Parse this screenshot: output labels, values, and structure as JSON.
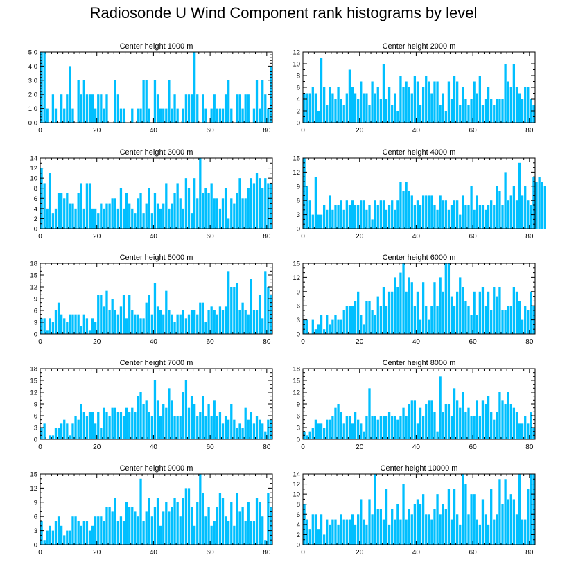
{
  "title": "Radiosonde U Wind Component rank histograms by level",
  "colors": {
    "bar": "#00bfff",
    "axis": "#000000",
    "background": "#ffffff"
  },
  "chart_data": [
    {
      "type": "bar",
      "title": "Center height 1000 m",
      "xlim": [
        0,
        82
      ],
      "ylim": [
        0,
        5
      ],
      "xticks": [
        0,
        20,
        40,
        60,
        80
      ],
      "yticks": [
        0,
        1,
        2,
        3,
        4,
        5
      ],
      "ytick_labels": [
        "0.0",
        "1.0",
        "2.0",
        "3.0",
        "4.0",
        "5.0"
      ],
      "values": [
        5,
        5,
        1,
        0,
        2,
        1,
        0,
        2,
        1,
        2,
        4,
        1,
        0,
        3,
        2,
        3,
        2,
        2,
        2,
        1,
        2,
        2,
        1,
        2,
        0,
        0,
        3,
        2,
        1,
        1,
        0,
        0,
        1,
        0,
        1,
        1,
        3,
        3,
        1,
        0,
        3,
        2,
        1,
        1,
        1,
        3,
        1,
        2,
        1,
        0,
        1,
        2,
        2,
        2,
        5,
        2,
        0,
        2,
        1,
        0,
        1,
        2,
        1,
        1,
        1,
        2,
        3,
        1,
        0,
        2,
        2,
        1,
        2,
        2,
        0,
        1,
        3,
        1,
        3,
        2,
        1,
        4
      ]
    },
    {
      "type": "bar",
      "title": "Center height 2000 m",
      "xlim": [
        0,
        82
      ],
      "ylim": [
        0,
        12
      ],
      "xticks": [
        0,
        20,
        40,
        60,
        80
      ],
      "yticks": [
        0,
        2,
        4,
        6,
        8,
        10,
        12
      ],
      "ytick_labels": [
        "0",
        "2",
        "4",
        "6",
        "8",
        "10",
        "12"
      ],
      "values": [
        5,
        5,
        5,
        6,
        5,
        2,
        11,
        6,
        3,
        6,
        5,
        4,
        6,
        4,
        3,
        5,
        9,
        6,
        5,
        4,
        7,
        5,
        5,
        3,
        7,
        5,
        6,
        4,
        10,
        4,
        6,
        3,
        5,
        2,
        8,
        6,
        7,
        6,
        5,
        8,
        7,
        3,
        6,
        8,
        7,
        5,
        7,
        7,
        3,
        5,
        2,
        7,
        4,
        8,
        7,
        3,
        6,
        4,
        3,
        4,
        7,
        5,
        8,
        3,
        4,
        6,
        4,
        3,
        4,
        4,
        4,
        10,
        7,
        6,
        10,
        6,
        5,
        4,
        6,
        6,
        4,
        3
      ]
    },
    {
      "type": "bar",
      "title": "Center height 3000 m",
      "xlim": [
        0,
        82
      ],
      "ylim": [
        0,
        14
      ],
      "xticks": [
        0,
        20,
        40,
        60,
        80
      ],
      "yticks": [
        0,
        2,
        4,
        6,
        8,
        10,
        12,
        14
      ],
      "ytick_labels": [
        "0",
        "2",
        "4",
        "6",
        "8",
        "10",
        "12",
        "14"
      ],
      "values": [
        12,
        9,
        4,
        11,
        3,
        4,
        7,
        7,
        6,
        7,
        5,
        5,
        4,
        7,
        9,
        4,
        9,
        9,
        4,
        4,
        3,
        5,
        4,
        5,
        5,
        6,
        6,
        4,
        8,
        4,
        7,
        5,
        4,
        3,
        6,
        7,
        3,
        5,
        8,
        3,
        7,
        5,
        4,
        5,
        9,
        4,
        5,
        7,
        9,
        6,
        4,
        10,
        8,
        3,
        10,
        6,
        14,
        7,
        8,
        7,
        9,
        6,
        6,
        4,
        6,
        8,
        2,
        6,
        5,
        7,
        10,
        6,
        6,
        8,
        10,
        9,
        11,
        10,
        8,
        10,
        9,
        9
      ]
    },
    {
      "type": "bar",
      "title": "Center height 4000 m",
      "xlim": [
        0,
        82
      ],
      "ylim": [
        0,
        15
      ],
      "xticks": [
        0,
        20,
        40,
        60,
        80
      ],
      "yticks": [
        0,
        3,
        6,
        9,
        12,
        15
      ],
      "ytick_labels": [
        "0",
        "3",
        "6",
        "9",
        "12",
        "15"
      ],
      "values": [
        15,
        9,
        6,
        3,
        11,
        3,
        3,
        5,
        4,
        7,
        4,
        5,
        5,
        6,
        4,
        6,
        5,
        6,
        5,
        5,
        6,
        6,
        4,
        5,
        2,
        6,
        5,
        6,
        6,
        4,
        5,
        6,
        4,
        6,
        10,
        8,
        10,
        8,
        7,
        5,
        6,
        5,
        7,
        7,
        7,
        7,
        5,
        4,
        7,
        6,
        6,
        4,
        5,
        6,
        6,
        3,
        7,
        5,
        5,
        9,
        4,
        7,
        5,
        5,
        4,
        5,
        6,
        5,
        9,
        8,
        5,
        12,
        6,
        7,
        9,
        6,
        14,
        7,
        9,
        6,
        5,
        11,
        10,
        11,
        10,
        9
      ]
    },
    {
      "type": "bar",
      "title": "Center height 5000 m",
      "xlim": [
        0,
        82
      ],
      "ylim": [
        0,
        18
      ],
      "xticks": [
        0,
        20,
        40,
        60,
        80
      ],
      "yticks": [
        0,
        3,
        6,
        9,
        12,
        15,
        18
      ],
      "ytick_labels": [
        "0",
        "3",
        "6",
        "9",
        "12",
        "15",
        "18"
      ],
      "values": [
        4,
        4,
        1,
        4,
        3,
        6,
        8,
        5,
        4,
        3,
        5,
        5,
        5,
        5,
        2,
        5,
        4,
        1,
        4,
        3,
        10,
        10,
        7,
        11,
        6,
        9,
        6,
        5,
        7,
        10,
        4,
        10,
        6,
        5,
        5,
        4,
        4,
        8,
        10,
        5,
        13,
        7,
        6,
        5,
        11,
        6,
        5,
        3,
        5,
        5,
        6,
        4,
        5,
        6,
        6,
        5,
        8,
        8,
        3,
        6,
        7,
        6,
        5,
        7,
        6,
        7,
        16,
        12,
        12,
        13,
        6,
        8,
        6,
        5,
        14,
        6,
        6,
        10,
        4,
        16,
        12,
        10
      ]
    },
    {
      "type": "bar",
      "title": "Center height 6000 m",
      "xlim": [
        0,
        82
      ],
      "ylim": [
        0,
        15
      ],
      "xticks": [
        0,
        20,
        40,
        60,
        80
      ],
      "yticks": [
        0,
        3,
        6,
        9,
        12,
        15
      ],
      "ytick_labels": [
        "0",
        "3",
        "6",
        "9",
        "12",
        "15"
      ],
      "values": [
        3,
        3,
        0,
        3,
        1,
        2,
        4,
        1,
        4,
        2,
        3,
        4,
        3,
        3,
        5,
        6,
        6,
        6,
        7,
        9,
        4,
        2,
        7,
        7,
        5,
        4,
        8,
        6,
        10,
        6,
        9,
        9,
        12,
        10,
        13,
        15,
        9,
        12,
        11,
        6,
        9,
        3,
        11,
        6,
        3,
        6,
        11,
        6,
        12,
        9,
        15,
        15,
        8,
        6,
        9,
        12,
        10,
        7,
        6,
        4,
        9,
        4,
        9,
        10,
        6,
        9,
        5,
        10,
        8,
        10,
        5,
        5,
        6,
        6,
        10,
        9,
        7,
        3,
        6,
        5,
        9,
        6
      ]
    },
    {
      "type": "bar",
      "title": "Center height 7000 m",
      "xlim": [
        0,
        82
      ],
      "ylim": [
        0,
        18
      ],
      "xticks": [
        0,
        20,
        40,
        60,
        80
      ],
      "yticks": [
        0,
        3,
        6,
        9,
        12,
        15,
        18
      ],
      "ytick_labels": [
        "0",
        "3",
        "6",
        "9",
        "12",
        "15",
        "18"
      ],
      "values": [
        3,
        4,
        0,
        1,
        1,
        3,
        3,
        4,
        5,
        4,
        1,
        4,
        6,
        5,
        9,
        7,
        6,
        7,
        7,
        4,
        7,
        3,
        8,
        7,
        6,
        8,
        8,
        7,
        7,
        6,
        8,
        7,
        8,
        7,
        11,
        12,
        9,
        10,
        7,
        6,
        15,
        10,
        6,
        9,
        8,
        13,
        10,
        6,
        6,
        6,
        12,
        15,
        8,
        11,
        9,
        6,
        7,
        11,
        6,
        9,
        6,
        10,
        6,
        7,
        4,
        6,
        5,
        9,
        5,
        3,
        4,
        3,
        8,
        5,
        7,
        4,
        6,
        5,
        4,
        2,
        5,
        5
      ]
    },
    {
      "type": "bar",
      "title": "Center height 8000 m",
      "xlim": [
        0,
        82
      ],
      "ylim": [
        0,
        18
      ],
      "xticks": [
        0,
        20,
        40,
        60,
        80
      ],
      "yticks": [
        0,
        3,
        6,
        9,
        12,
        15,
        18
      ],
      "ytick_labels": [
        "0",
        "3",
        "6",
        "9",
        "12",
        "15",
        "18"
      ],
      "values": [
        2,
        1,
        2,
        3,
        5,
        4,
        4,
        3,
        5,
        5,
        6,
        8,
        9,
        7,
        4,
        6,
        6,
        4,
        7,
        5,
        4,
        2,
        6,
        13,
        6,
        6,
        5,
        6,
        6,
        6,
        7,
        6,
        6,
        5,
        6,
        8,
        6,
        9,
        10,
        10,
        4,
        8,
        6,
        9,
        10,
        10,
        7,
        2,
        16,
        7,
        9,
        9,
        6,
        13,
        10,
        8,
        12,
        7,
        8,
        6,
        6,
        10,
        6,
        10,
        9,
        11,
        7,
        5,
        7,
        12,
        10,
        9,
        12,
        9,
        8,
        7,
        4,
        4,
        6,
        4,
        7,
        3
      ]
    },
    {
      "type": "bar",
      "title": "Center height 9000 m",
      "xlim": [
        0,
        82
      ],
      "ylim": [
        0,
        15
      ],
      "xticks": [
        0,
        20,
        40,
        60,
        80
      ],
      "yticks": [
        0,
        3,
        6,
        9,
        12,
        15
      ],
      "ytick_labels": [
        "0",
        "3",
        "6",
        "9",
        "12",
        "15"
      ],
      "values": [
        5,
        1,
        3,
        4,
        3,
        5,
        6,
        4,
        2,
        3,
        3,
        6,
        6,
        5,
        4,
        5,
        5,
        3,
        4,
        6,
        6,
        6,
        5,
        8,
        8,
        7,
        10,
        5,
        6,
        5,
        9,
        8,
        8,
        7,
        6,
        14,
        5,
        7,
        10,
        6,
        8,
        10,
        4,
        7,
        9,
        7,
        8,
        10,
        9,
        6,
        10,
        12,
        12,
        8,
        4,
        9,
        15,
        11,
        6,
        8,
        4,
        5,
        8,
        11,
        10,
        6,
        5,
        9,
        4,
        11,
        7,
        8,
        5,
        9,
        5,
        5,
        10,
        9,
        6,
        1,
        11,
        8
      ]
    },
    {
      "type": "bar",
      "title": "Center height 10000 m",
      "xlim": [
        0,
        82
      ],
      "ylim": [
        0,
        14
      ],
      "xticks": [
        0,
        20,
        40,
        60,
        80
      ],
      "yticks": [
        0,
        2,
        4,
        6,
        8,
        10,
        12,
        14
      ],
      "ytick_labels": [
        "0",
        "2",
        "4",
        "6",
        "8",
        "10",
        "12",
        "14"
      ],
      "values": [
        8,
        5,
        3,
        6,
        6,
        3,
        6,
        2,
        5,
        4,
        5,
        5,
        4,
        6,
        5,
        5,
        5,
        6,
        4,
        6,
        9,
        5,
        4,
        9,
        6,
        14,
        7,
        7,
        5,
        11,
        4,
        7,
        5,
        8,
        5,
        12,
        5,
        7,
        6,
        8,
        9,
        8,
        10,
        6,
        6,
        5,
        7,
        10,
        6,
        8,
        7,
        11,
        5,
        11,
        6,
        4,
        14,
        12,
        6,
        10,
        10,
        5,
        4,
        9,
        6,
        4,
        11,
        5,
        6,
        13,
        8,
        13,
        9,
        10,
        9,
        6,
        14,
        5,
        5,
        11,
        14,
        14
      ]
    }
  ]
}
